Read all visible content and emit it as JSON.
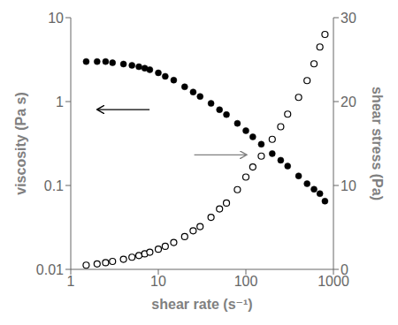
{
  "chart_data": {
    "type": "scatter",
    "xlabel": "shear rate (s⁻¹)",
    "ylabel": "viscosity (Pa s)",
    "y2label": "shear stress (Pa)",
    "log": true,
    "grid": false,
    "xlim": [
      1,
      1000
    ],
    "xticks": [
      1,
      10,
      100,
      1000
    ],
    "ylim": [
      0.01,
      10
    ],
    "yticks": [
      0.01,
      0.1,
      1,
      10
    ],
    "y2lim": [
      0,
      30
    ],
    "y2ticks": [
      0,
      10,
      20,
      30
    ],
    "x": [
      1.5,
      2.0,
      2.5,
      3.0,
      4.0,
      5.0,
      6.0,
      7.0,
      8.0,
      10.0,
      12.0,
      15.0,
      20.0,
      25.0,
      30.0,
      40.0,
      50.0,
      60.0,
      80.0,
      100.0,
      120.0,
      150.0,
      200.0,
      250.0,
      300.0,
      400.0,
      500.0,
      600.0,
      700.0,
      800.0
    ],
    "series": [
      {
        "color": "black",
        "marker": "circle",
        "axis": "y",
        "values": [
          3.0,
          3.0,
          3.0,
          2.9,
          2.8,
          2.7,
          2.6,
          2.5,
          2.4,
          2.2,
          2.0,
          1.8,
          1.5,
          1.3,
          1.15,
          0.95,
          0.8,
          0.7,
          0.55,
          0.45,
          0.38,
          0.31,
          0.24,
          0.2,
          0.17,
          0.13,
          0.105,
          0.09,
          0.08,
          0.065
        ]
      },
      {
        "color": "black",
        "marker": "open_circle",
        "axis": "y2",
        "values": [
          0.5,
          0.65,
          0.8,
          0.95,
          1.2,
          1.45,
          1.65,
          1.85,
          2.05,
          2.4,
          2.75,
          3.2,
          3.9,
          4.6,
          5.1,
          6.2,
          7.2,
          7.9,
          9.5,
          11.0,
          12.2,
          13.5,
          15.5,
          17.0,
          18.5,
          20.5,
          22.5,
          24.5,
          26.5,
          28.0
        ]
      }
    ]
  }
}
